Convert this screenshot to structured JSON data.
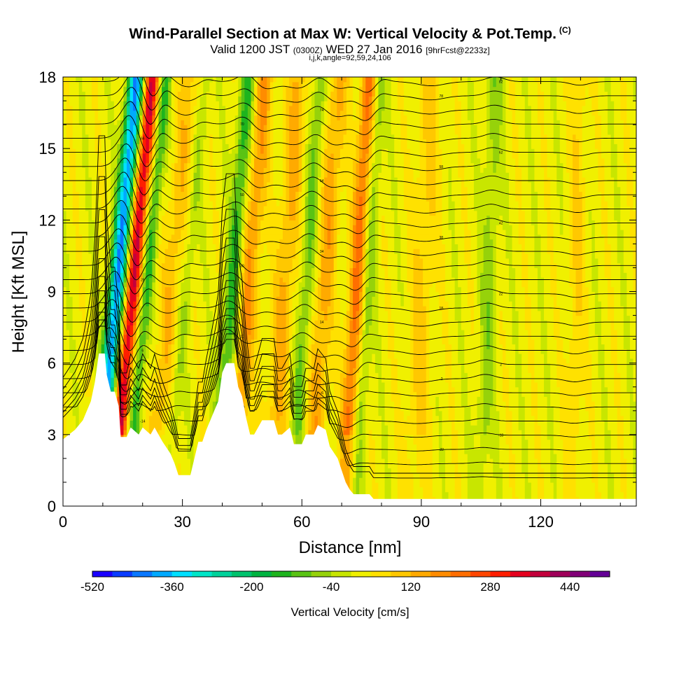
{
  "chart_data": {
    "type": "heatmap",
    "title": "Wind-Parallel Section at Max W: Vertical Velocity & Pot.Temp.",
    "title_mark": "(C)",
    "subtitle_main": "Valid 1200 JST",
    "subtitle_z": "(0300Z)",
    "subtitle_date": "WED 27 Jan 2016",
    "subtitle_fcst": "[9hrFcst@2233z]",
    "subtitle2": "i,j,k,angle=92,59,24,106",
    "xlabel": "Distance [nm]",
    "ylabel": "Height [Kft MSL]",
    "xlim": [
      0,
      144
    ],
    "ylim": [
      0,
      18
    ],
    "x_ticks": [
      "0",
      "30",
      "60",
      "90",
      "120"
    ],
    "y_ticks": [
      "0",
      "3",
      "6",
      "9",
      "12",
      "15",
      "18"
    ],
    "colorbar": {
      "label": "Vertical Velocity [cm/s]",
      "tick_labels": [
        "-520",
        "-360",
        "-200",
        "-40",
        "120",
        "280",
        "440"
      ],
      "colors": [
        "#1a00ff",
        "#0a3cff",
        "#0a78ff",
        "#00aaff",
        "#00e0ff",
        "#00e6c8",
        "#00d29b",
        "#00c36e",
        "#00b441",
        "#1eb41e",
        "#5ac314",
        "#96d20a",
        "#c8e600",
        "#f0f000",
        "#ffe100",
        "#ffc800",
        "#ffaa00",
        "#ff8c00",
        "#ff6e00",
        "#ff4600",
        "#ff1e00",
        "#e6001e",
        "#c3003c",
        "#a0005a",
        "#820078",
        "#640096"
      ]
    },
    "terrain_kft": [
      [
        0,
        2.8
      ],
      [
        3,
        3.2
      ],
      [
        5,
        3.6
      ],
      [
        7,
        4.4
      ],
      [
        8,
        5.2
      ],
      [
        9,
        6.4
      ],
      [
        10.5,
        6.4
      ],
      [
        11,
        5.5
      ],
      [
        12,
        4.8
      ],
      [
        13,
        4.8
      ],
      [
        14,
        4.2
      ],
      [
        14.5,
        2.9
      ],
      [
        16,
        2.9
      ],
      [
        17,
        3.3
      ],
      [
        19,
        3.0
      ],
      [
        20,
        3.3
      ],
      [
        22,
        3.0
      ],
      [
        23,
        3.3
      ],
      [
        25,
        2.7
      ],
      [
        27,
        2.2
      ],
      [
        28,
        1.8
      ],
      [
        29,
        1.3
      ],
      [
        32,
        1.3
      ],
      [
        33,
        2.0
      ],
      [
        34,
        2.7
      ],
      [
        35,
        2.7
      ],
      [
        36,
        3.2
      ],
      [
        38,
        4.0
      ],
      [
        39,
        4.4
      ],
      [
        40,
        5.6
      ],
      [
        41,
        6.0
      ],
      [
        43,
        6.0
      ],
      [
        44,
        5.0
      ],
      [
        45,
        4.6
      ],
      [
        46,
        3.7
      ],
      [
        47,
        3.0
      ],
      [
        48,
        3.0
      ],
      [
        49,
        3.3
      ],
      [
        50,
        3.6
      ],
      [
        53,
        3.6
      ],
      [
        54,
        3.0
      ],
      [
        55,
        3.0
      ],
      [
        57,
        3.3
      ],
      [
        58,
        2.6
      ],
      [
        60,
        2.6
      ],
      [
        61,
        3.0
      ],
      [
        63,
        3.0
      ],
      [
        64,
        3.4
      ],
      [
        66,
        3.2
      ],
      [
        67,
        2.5
      ],
      [
        69,
        2.0
      ],
      [
        70,
        1.5
      ],
      [
        71,
        1.0
      ],
      [
        72,
        0.7
      ],
      [
        73,
        0.5
      ],
      [
        77,
        0.5
      ],
      [
        78,
        0.3
      ],
      [
        144,
        0.3
      ]
    ],
    "velocity_bands": [
      {
        "x_base": 8.5,
        "halfwidth": 2.0,
        "tilt": 0.55,
        "w": -420
      },
      {
        "x_base": 12.5,
        "halfwidth": 1.8,
        "tilt": 0.55,
        "w": 340
      },
      {
        "x_base": 16,
        "halfwidth": 1.5,
        "tilt": 0.55,
        "w": -150
      },
      {
        "x_base": 22,
        "halfwidth": 2.5,
        "tilt": 0.55,
        "w": 90
      },
      {
        "x_base": 26,
        "halfwidth": 1.5,
        "tilt": 0.55,
        "w": -60
      },
      {
        "x_base": 38.5,
        "halfwidth": 2.0,
        "tilt": 0.45,
        "w": -160
      },
      {
        "x_base": 42.5,
        "halfwidth": 2.5,
        "tilt": 0.45,
        "w": 140
      },
      {
        "x_base": 52,
        "halfwidth": 2.5,
        "tilt": 0.4,
        "w": 110
      },
      {
        "x_base": 57.5,
        "halfwidth": 1.8,
        "tilt": 0.4,
        "w": -110
      },
      {
        "x_base": 62,
        "halfwidth": 2.5,
        "tilt": 0.4,
        "w": 120
      },
      {
        "x_base": 70.5,
        "halfwidth": 2.0,
        "tilt": 0.35,
        "w": 190
      },
      {
        "x_base": 73.5,
        "halfwidth": 1.5,
        "tilt": 0.35,
        "w": -90
      },
      {
        "x_base": 88,
        "halfwidth": 3.0,
        "tilt": 0.25,
        "w": 70
      },
      {
        "x_base": 105,
        "halfwidth": 2.0,
        "tilt": 0.2,
        "w": -80
      },
      {
        "x_base": 128,
        "halfwidth": 2.0,
        "tilt": 0.1,
        "w": 60
      }
    ],
    "background_w": 20,
    "isentrope_count": 30,
    "isentrope_labels": [
      "-34",
      "-30",
      "-26",
      "-22",
      "-18",
      "-14",
      "-10",
      "-6",
      "-2",
      "2",
      "6",
      "10",
      "14",
      "18",
      "22",
      "26",
      "30",
      "34",
      "38",
      "42",
      "46",
      "50",
      "54",
      "58",
      "62",
      "66",
      "70",
      "74",
      "78",
      "82"
    ]
  }
}
